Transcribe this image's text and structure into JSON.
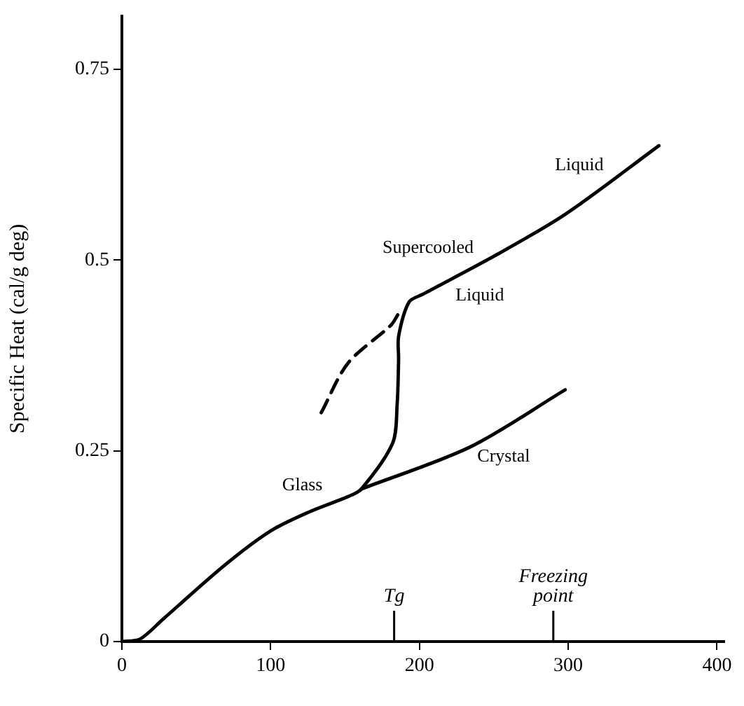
{
  "chart_data": {
    "type": "line",
    "ylabel": "Specific Heat (cal/g deg)",
    "xlim": [
      0,
      405
    ],
    "ylim": [
      0,
      0.82
    ],
    "xticks": [
      0,
      100,
      200,
      300,
      400
    ],
    "yticks": [
      0,
      0.25,
      0.5,
      0.75
    ],
    "series": [
      {
        "color": "#000000",
        "x": [
          0,
          12,
          28,
          69,
          100,
          126,
          152,
          161,
          182,
          185,
          186,
          186,
          193,
          202,
          250,
          298,
          361
        ],
        "values": [
          0,
          0.003,
          0.03,
          0.1,
          0.145,
          0.17,
          0.19,
          0.2,
          0.26,
          0.31,
          0.37,
          0.4,
          0.445,
          0.455,
          0.505,
          0.56,
          0.65
        ]
      },
      {
        "color": "#000000",
        "x": [
          161,
          234,
          298
        ],
        "values": [
          0.2,
          0.255,
          0.33
        ]
      },
      {
        "color": "#000000",
        "line_style": "dashed",
        "x": [
          134,
          152,
          181,
          186
        ],
        "values": [
          0.3,
          0.365,
          0.415,
          0.43
        ]
      }
    ],
    "ref_lines": [
      {
        "axis": "x",
        "value": 183,
        "label": "Tg"
      },
      {
        "axis": "x",
        "value": 290,
        "label": "Freezing point"
      }
    ],
    "annotations": [
      {
        "text": "Liquid",
        "x": 298,
        "y": 0.56
      },
      {
        "text": "Supercooled",
        "x": 202,
        "y": 0.455
      },
      {
        "text": "Liquid",
        "x": 250,
        "y": 0.505
      },
      {
        "text": "Crystal",
        "x": 234,
        "y": 0.255
      },
      {
        "text": "Glass",
        "x": 126,
        "y": 0.17
      }
    ],
    "grid": false,
    "legend": false,
    "marker": "none"
  }
}
